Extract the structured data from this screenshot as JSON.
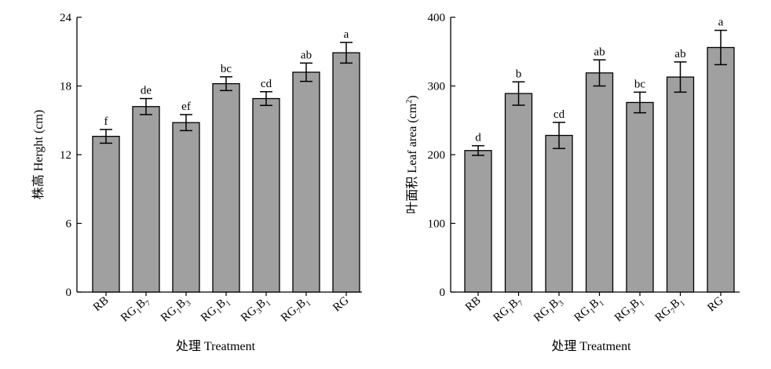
{
  "chart_data": [
    {
      "type": "bar",
      "ylabel": "株高 Herght (cm)",
      "xlabel": "处理 Treatment",
      "ylim": [
        0,
        24
      ],
      "yticks": [
        0,
        6,
        12,
        18,
        24
      ],
      "categories": [
        {
          "base": "RB",
          "parts": [
            [
              "RB",
              ""
            ]
          ]
        },
        {
          "base": "RG1B7",
          "parts": [
            [
              "RG",
              "1"
            ],
            [
              "B",
              "7"
            ]
          ]
        },
        {
          "base": "RG1B3",
          "parts": [
            [
              "RG",
              "1"
            ],
            [
              "B",
              "3"
            ]
          ]
        },
        {
          "base": "RG1B1",
          "parts": [
            [
              "RG",
              "1"
            ],
            [
              "B",
              "1"
            ]
          ]
        },
        {
          "base": "RG3B1",
          "parts": [
            [
              "RG",
              "3"
            ],
            [
              "B",
              "1"
            ]
          ]
        },
        {
          "base": "RG7B1",
          "parts": [
            [
              "RG",
              "7"
            ],
            [
              "B",
              "1"
            ]
          ]
        },
        {
          "base": "RG",
          "parts": [
            [
              "RG",
              ""
            ]
          ]
        }
      ],
      "values": [
        13.6,
        16.2,
        14.8,
        18.2,
        16.9,
        19.2,
        20.9
      ],
      "errors": [
        0.6,
        0.7,
        0.7,
        0.6,
        0.6,
        0.8,
        0.9
      ],
      "letters": [
        "f",
        "de",
        "ef",
        "bc",
        "cd",
        "ab",
        "a"
      ],
      "bar_color": "#a0a0a0"
    },
    {
      "type": "bar",
      "ylabel": "叶面积 Leaf area (cm2)",
      "ylabel_main": "叶面积 Leaf area (cm",
      "ylabel_sup": "2",
      "ylabel_end": ")",
      "xlabel": "处理 Treatment",
      "ylim": [
        0,
        400
      ],
      "yticks": [
        0,
        100,
        200,
        300,
        400
      ],
      "categories": [
        {
          "base": "RB",
          "parts": [
            [
              "RB",
              ""
            ]
          ]
        },
        {
          "base": "RG1B7",
          "parts": [
            [
              "RG",
              "1"
            ],
            [
              "B",
              "7"
            ]
          ]
        },
        {
          "base": "RG1B3",
          "parts": [
            [
              "RG",
              "1"
            ],
            [
              "B",
              "3"
            ]
          ]
        },
        {
          "base": "RG1B1",
          "parts": [
            [
              "RG",
              "1"
            ],
            [
              "B",
              "1"
            ]
          ]
        },
        {
          "base": "RG3B1",
          "parts": [
            [
              "RG",
              "3"
            ],
            [
              "B",
              "1"
            ]
          ]
        },
        {
          "base": "RG7B1",
          "parts": [
            [
              "RG",
              "7"
            ],
            [
              "B",
              "1"
            ]
          ]
        },
        {
          "base": "RG",
          "parts": [
            [
              "RG",
              ""
            ]
          ]
        }
      ],
      "values": [
        206,
        289,
        228,
        319,
        276,
        313,
        356
      ],
      "errors": [
        7,
        17,
        19,
        19,
        15,
        22,
        25
      ],
      "letters": [
        "d",
        "b",
        "cd",
        "ab",
        "bc",
        "ab",
        "a"
      ],
      "bar_color": "#a0a0a0"
    }
  ]
}
